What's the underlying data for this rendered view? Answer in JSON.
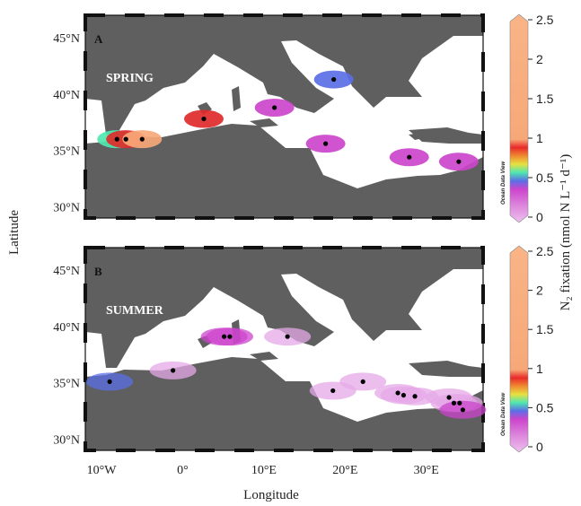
{
  "axes": {
    "x_label": "Longitude",
    "y_label": "Latitude",
    "x_ticks": [
      "10°W",
      "0°",
      "10°E",
      "20°E",
      "30°E"
    ],
    "y_ticks": [
      "45°N",
      "40°N",
      "35°N",
      "30°N"
    ],
    "x_tick_values": [
      -10,
      0,
      10,
      20,
      30
    ],
    "y_tick_values": [
      45,
      40,
      35,
      30
    ],
    "lon_range": [
      -12,
      37
    ],
    "lat_range": [
      29,
      47
    ]
  },
  "colorbar": {
    "label": "N₂ fixation (nmol N L⁻¹ d⁻¹)",
    "ticks": [
      "2.5",
      "2",
      "1.5",
      "1",
      "0.5",
      "0"
    ],
    "tick_values": [
      2.5,
      2,
      1.5,
      1,
      0.5,
      0
    ],
    "watermark": "Ocean Data View",
    "colors": {
      "0": "#e6a8e8",
      "0.25": "#cc44cc",
      "0.45": "#5a6fe6",
      "0.6": "#4fe8b0",
      "0.7": "#e8e040",
      "0.8": "#f08a30",
      "0.9": "#e82a2a",
      "1.0": "#d22a3a",
      "high": "#f7a878"
    }
  },
  "panels": [
    {
      "letter": "A",
      "season": "SPRING",
      "points": [
        {
          "lon": -8.1,
          "lat": 36.0,
          "value": 0.62
        },
        {
          "lon": -7.0,
          "lat": 36.0,
          "value": 0.9
        },
        {
          "lon": -5.0,
          "lat": 36.0,
          "value": 1.4
        },
        {
          "lon": 2.6,
          "lat": 37.8,
          "value": 0.95
        },
        {
          "lon": 11.3,
          "lat": 38.8,
          "value": 0.3
        },
        {
          "lon": 18.6,
          "lat": 41.3,
          "value": 0.45
        },
        {
          "lon": 17.6,
          "lat": 35.6,
          "value": 0.22
        },
        {
          "lon": 27.9,
          "lat": 34.4,
          "value": 0.22
        },
        {
          "lon": 34.0,
          "lat": 34.0,
          "value": 0.22
        }
      ]
    },
    {
      "letter": "B",
      "season": "SUMMER",
      "points": [
        {
          "lon": -9.0,
          "lat": 35.1,
          "value": 0.42
        },
        {
          "lon": -1.2,
          "lat": 36.1,
          "value": 0.1
        },
        {
          "lon": 5.1,
          "lat": 39.1,
          "value": 0.25
        },
        {
          "lon": 5.8,
          "lat": 39.1,
          "value": 0.32
        },
        {
          "lon": 12.9,
          "lat": 39.1,
          "value": 0.12
        },
        {
          "lon": 18.5,
          "lat": 34.3,
          "value": 0.15
        },
        {
          "lon": 22.2,
          "lat": 35.1,
          "value": 0.12
        },
        {
          "lon": 26.5,
          "lat": 34.1,
          "value": 0.1
        },
        {
          "lon": 27.2,
          "lat": 33.9,
          "value": 0.1
        },
        {
          "lon": 28.6,
          "lat": 33.8,
          "value": 0.1
        },
        {
          "lon": 32.8,
          "lat": 33.7,
          "value": 0.15
        },
        {
          "lon": 33.4,
          "lat": 33.2,
          "value": 0.18
        },
        {
          "lon": 34.1,
          "lat": 33.2,
          "value": 0.18
        },
        {
          "lon": 34.5,
          "lat": 32.6,
          "value": 0.2
        }
      ]
    }
  ]
}
